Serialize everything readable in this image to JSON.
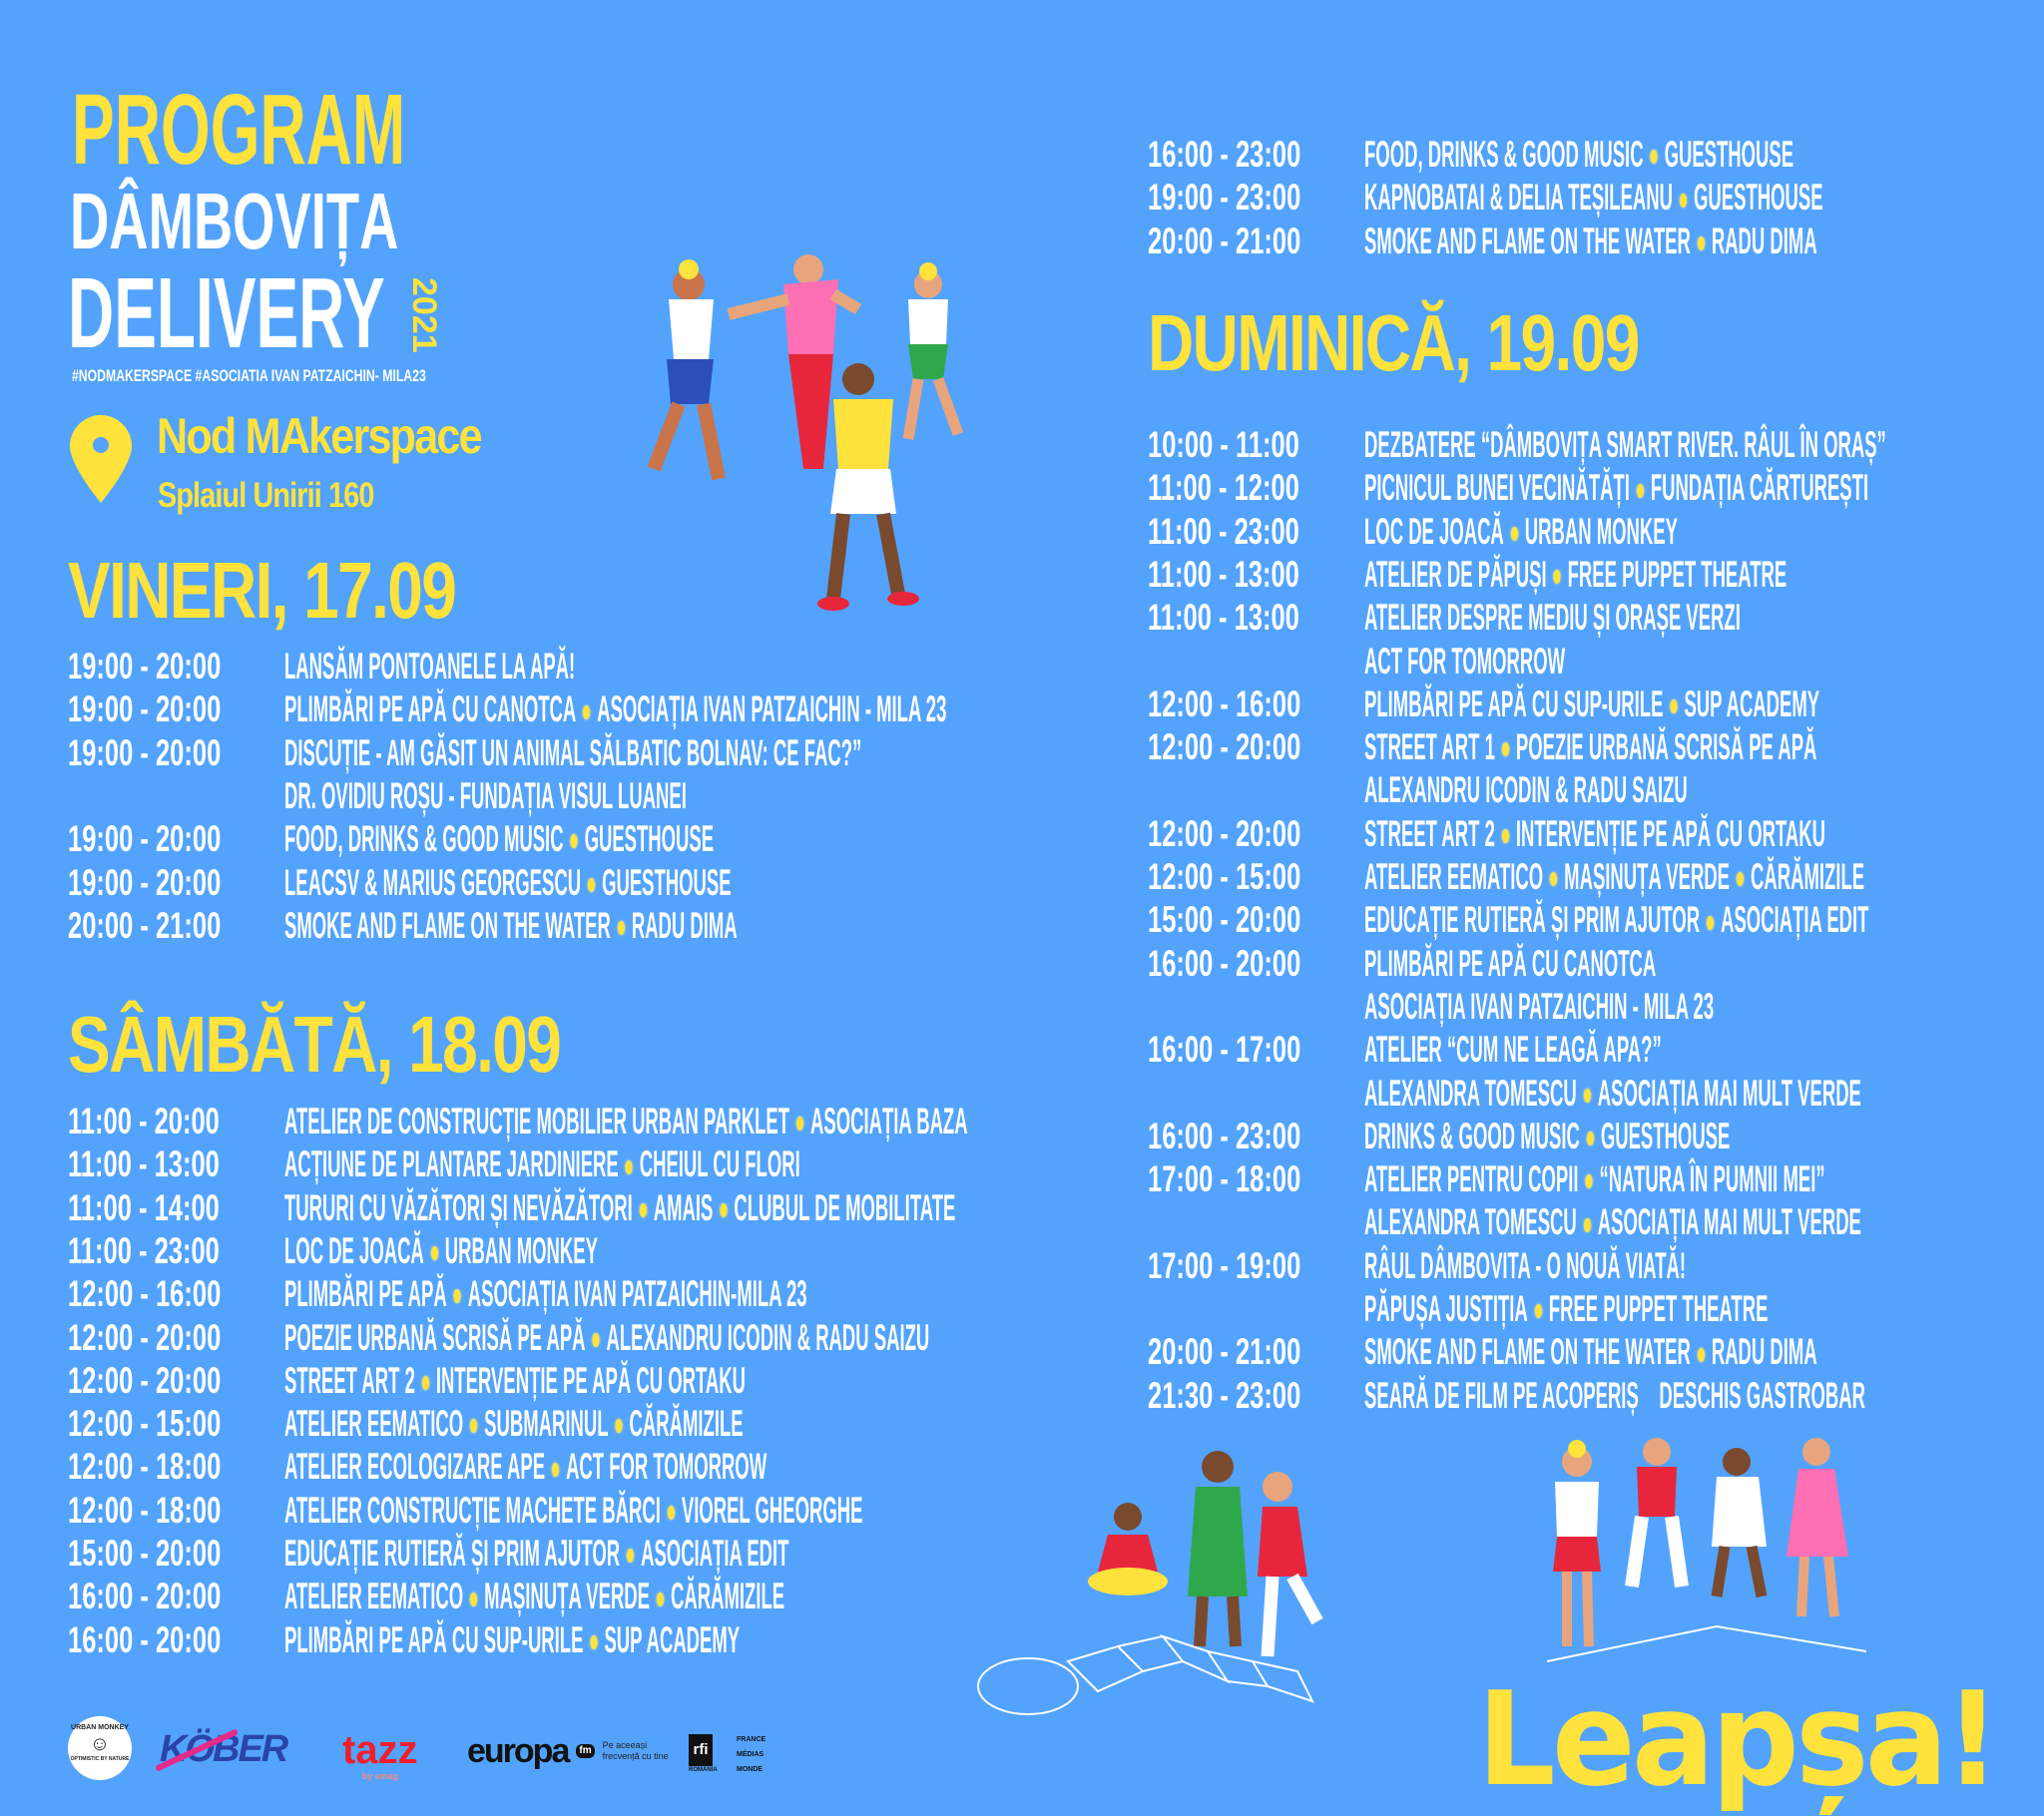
{
  "colors": {
    "background": "#53a3fd",
    "accent_yellow": "#ffe23c",
    "text": "#ffffff"
  },
  "header": {
    "title": "PROGRAM",
    "event_line1": "DÂMBOVIȚA",
    "event_line2": "DELIVERY",
    "year": "2021",
    "hashtags": "#NODMAKERSPACE #ASOCIATIA IVAN PATZAICHIN- MILA23",
    "location_icon": "map-pin-icon",
    "venue": "Nod MAkerspace",
    "address": "Splaiul Unirii 160"
  },
  "days": [
    {
      "title": "VINERI, 17.09",
      "rows": [
        {
          "time": "19:00 - 20:00",
          "parts": [
            "LANSĂM PONTOANELE LA APĂ!"
          ]
        },
        {
          "time": "19:00 - 20:00",
          "parts": [
            "PLIMBĂRI PE APĂ CU CANOTCA",
            "ASOCIAȚIA IVAN PATZAICHIN - MILA 23"
          ]
        },
        {
          "time": "19:00 - 20:00",
          "parts": [
            "DISCUȚIE - AM GĂSIT UN ANIMAL SĂLBATIC BOLNAV: CE FAC?”"
          ]
        },
        {
          "time": "",
          "parts": [
            "DR. OVIDIU ROȘU - FUNDAȚIA VISUL LUANEI"
          ]
        },
        {
          "time": "19:00 - 20:00",
          "parts": [
            "FOOD, DRINKS & GOOD MUSIC",
            "GUESTHOUSE"
          ]
        },
        {
          "time": "19:00 - 20:00",
          "parts": [
            "LEACSV & MARIUS GEORGESCU",
            "GUESTHOUSE"
          ]
        },
        {
          "time": "20:00 - 21:00",
          "parts": [
            "SMOKE AND FLAME ON THE WATER",
            "RADU DIMA"
          ]
        }
      ]
    },
    {
      "title": "SÂMBĂTĂ, 18.09",
      "rows": [
        {
          "time": "11:00 - 20:00",
          "parts": [
            "ATELIER DE CONSTRUCȚIE MOBILIER URBAN PARKLET",
            "ASOCIAȚIA BAZA"
          ]
        },
        {
          "time": "11:00 - 13:00",
          "parts": [
            "ACȚIUNE DE PLANTARE JARDINIERE",
            "CHEIUL CU FLORI"
          ]
        },
        {
          "time": "11:00 - 14:00",
          "parts": [
            "TURURI CU VĂZĂTORI ȘI NEVĂZĂTORI",
            "AMAIS",
            "CLUBUL DE MOBILITATE"
          ]
        },
        {
          "time": "11:00 - 23:00",
          "parts": [
            "LOC DE JOACĂ",
            "URBAN MONKEY"
          ]
        },
        {
          "time": "12:00 - 16:00",
          "parts": [
            "PLIMBĂRI PE APĂ",
            "ASOCIAȚIA IVAN PATZAICHIN-MILA 23"
          ]
        },
        {
          "time": "12:00 - 20:00",
          "parts": [
            "POEZIE URBANĂ SCRISĂ PE APĂ",
            "ALEXANDRU ICODIN & RADU SAIZU"
          ]
        },
        {
          "time": "12:00 - 20:00",
          "parts": [
            "STREET ART 2",
            "INTERVENȚIE PE APĂ CU ORTAKU"
          ]
        },
        {
          "time": "12:00 - 15:00",
          "parts": [
            "ATELIER EEMATICO",
            "SUBMARINUL",
            "CĂRĂMIZILE"
          ]
        },
        {
          "time": "12:00 - 18:00",
          "parts": [
            "ATELIER ECOLOGIZARE APE",
            "ACT FOR TOMORROW"
          ]
        },
        {
          "time": "12:00 - 18:00",
          "parts": [
            "ATELIER CONSTRUCȚIE MACHETE BĂRCI",
            "VIOREL GHEORGHE"
          ]
        },
        {
          "time": "15:00 - 20:00",
          "parts": [
            "EDUCAȚIE RUTIERĂ ȘI PRIM AJUTOR",
            "ASOCIAȚIA EDIT"
          ]
        },
        {
          "time": "16:00 - 20:00",
          "parts": [
            "ATELIER EEMATICO",
            "MAȘINUȚA VERDE",
            "CĂRĂMIZILE"
          ]
        },
        {
          "time": "16:00 - 20:00",
          "parts": [
            "PLIMBĂRI PE APĂ CU SUP-URILE",
            "SUP ACADEMY"
          ]
        },
        {
          "time": "16:00 - 23:00",
          "parts": [
            "FOOD, DRINKS & GOOD MUSIC",
            "GUESTHOUSE"
          ]
        },
        {
          "time": "19:00 - 23:00",
          "parts": [
            "KAPNOBATAI & DELIA TEȘILEANU",
            "GUESTHOUSE"
          ]
        },
        {
          "time": "20:00 - 21:00",
          "parts": [
            "SMOKE AND FLAME ON THE WATER",
            "RADU DIMA"
          ]
        }
      ]
    },
    {
      "title": "DUMINICĂ, 19.09",
      "rows": [
        {
          "time": "10:00 - 11:00",
          "parts": [
            "DEZBATERE “DÂMBOVIȚA SMART RIVER. RÂUL ÎN ORAȘ”"
          ]
        },
        {
          "time": "11:00 - 12:00",
          "parts": [
            "PICNICUL BUNEI VECINĂTĂȚI",
            "FUNDAȚIA CĂRTUREȘTI"
          ]
        },
        {
          "time": "11:00 - 23:00",
          "parts": [
            "LOC DE JOACĂ",
            "URBAN MONKEY"
          ]
        },
        {
          "time": "11:00 - 13:00",
          "parts": [
            "ATELIER DE PĂPUȘI",
            "FREE PUPPET THEATRE"
          ]
        },
        {
          "time": "11:00 - 13:00",
          "parts": [
            "ATELIER DESPRE MEDIU ȘI ORAȘE VERZI"
          ]
        },
        {
          "time": "",
          "parts": [
            "ACT FOR TOMORROW"
          ]
        },
        {
          "time": "12:00 - 16:00",
          "parts": [
            "PLIMBĂRI PE APĂ CU SUP-URILE",
            "SUP ACADEMY"
          ]
        },
        {
          "time": "12:00 - 20:00",
          "parts": [
            "STREET ART 1",
            "POEZIE URBANĂ SCRISĂ PE APĂ"
          ]
        },
        {
          "time": "",
          "parts": [
            "ALEXANDRU ICODIN & RADU SAIZU"
          ]
        },
        {
          "time": "12:00 - 20:00",
          "parts": [
            "STREET ART 2",
            "INTERVENȚIE PE APĂ CU ORTAKU"
          ]
        },
        {
          "time": "12:00 - 15:00",
          "parts": [
            "ATELIER EEMATICO",
            "MAȘINUȚA VERDE",
            "CĂRĂMIZILE"
          ]
        },
        {
          "time": "15:00 - 20:00",
          "parts": [
            "EDUCAȚIE RUTIERĂ ȘI PRIM AJUTOR",
            "ASOCIAȚIA EDIT"
          ]
        },
        {
          "time": "16:00 - 20:00",
          "parts": [
            "PLIMBĂRI PE APĂ CU CANOTCA"
          ]
        },
        {
          "time": "",
          "parts": [
            "ASOCIAȚIA IVAN PATZAICHIN - MILA 23"
          ]
        },
        {
          "time": "16:00 - 17:00",
          "parts": [
            "ATELIER “CUM NE LEAGĂ APA?”"
          ]
        },
        {
          "time": "",
          "parts": [
            "ALEXANDRA TOMESCU",
            "ASOCIAȚIA MAI MULT VERDE"
          ]
        },
        {
          "time": "16:00 - 23:00",
          "parts": [
            "DRINKS & GOOD MUSIC",
            "GUESTHOUSE"
          ]
        },
        {
          "time": "17:00 - 18:00",
          "parts": [
            "ATELIER PENTRU COPII",
            "“NATURA ÎN PUMNII MEI”"
          ]
        },
        {
          "time": "",
          "parts": [
            "ALEXANDRA TOMESCU",
            "ASOCIAȚIA MAI MULT VERDE"
          ]
        },
        {
          "time": "17:00 - 19:00",
          "parts": [
            "RÂUL DÂMBOVITA - O NOUĂ VIATĂ!"
          ]
        },
        {
          "time": "",
          "parts": [
            "PĂPUȘA JUSTIȚIA",
            "FREE PUPPET THEATRE"
          ]
        },
        {
          "time": "20:00 - 21:00",
          "parts": [
            "SMOKE AND FLAME ON THE WATER",
            "RADU DIMA"
          ]
        },
        {
          "time": "21:30 - 23:00",
          "parts": [
            "SEARĂ DE FILM PE ACOPERIȘ    DESCHIS GASTROBAR"
          ]
        }
      ]
    }
  ],
  "sponsors": {
    "urban_monkey": {
      "name": "URBAN MONKEY",
      "tagline": "OPTIMISTIC BY NATURE"
    },
    "kober": "KÖBER",
    "tazz": {
      "name": "tazz",
      "sub": "by emag"
    },
    "europafm": {
      "name": "europa",
      "fm": "fm",
      "tagline1": "Pe aceeași",
      "tagline2": "frecvență cu tine"
    },
    "rfi": {
      "name": "rfi",
      "country": "ROMÂNIA",
      "lines": [
        "FRANCE",
        "MÉDIAS",
        "MONDE"
      ]
    }
  },
  "brand": {
    "leapsa": "Leapșa!"
  }
}
